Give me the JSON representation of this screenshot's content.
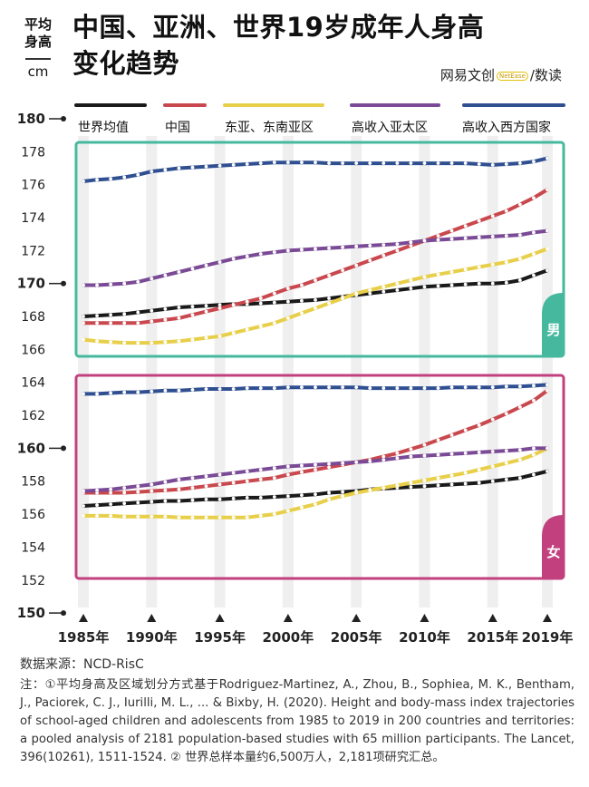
{
  "header": {
    "y_unit_line1": "平均",
    "y_unit_line2": "身高",
    "y_unit": "cm",
    "title_line1": "中国、亚洲、世界19岁成年人身高",
    "title_line2": "变化趋势",
    "brand_left": "网易",
    "brand_mid": "文创",
    "brand_logo": "NetEase",
    "brand_right": "数读"
  },
  "footer": {
    "source": "数据来源：NCD-RisC",
    "note": "注：①平均身高及区域划分方式基于Rodriguez-Martinez, A., Zhou, B., Sophiea, M. K., Bentham, J., Paciorek, C. J., Iurilli, M. L., ... & Bixby, H. (2020). Height and body-mass index trajectories of school-aged children and adolescents from 1985 to 2019 in 200 countries and territories: a pooled analysis of 2181 population-based studies with 65 million participants. The Lancet, 396(10261), 1511-1524. ② 世界总样本量约6,500万人，2,181项研究汇总。"
  },
  "chart_data": {
    "type": "line",
    "xlabel": "",
    "ylabel": "平均身高",
    "yunit": "cm",
    "ylim": [
      150,
      180
    ],
    "y_ticks": [
      150,
      152,
      154,
      156,
      158,
      160,
      162,
      164,
      166,
      168,
      170,
      172,
      174,
      176,
      178,
      180
    ],
    "y_ticks_emphasis": [
      150,
      160,
      170,
      180
    ],
    "x_ticks": [
      1985,
      1990,
      1995,
      2000,
      2005,
      2010,
      2015,
      2019
    ],
    "x_tick_labels": [
      "1985年",
      "1990年",
      "1995年",
      "2000年",
      "2005年",
      "2010年",
      "2015年",
      "2019年"
    ],
    "grid": "vertical bands",
    "legend_position": "top",
    "years": [
      1985,
      1986,
      1987,
      1988,
      1989,
      1990,
      1991,
      1992,
      1993,
      1994,
      1995,
      1996,
      1997,
      1998,
      1999,
      2000,
      2001,
      2002,
      2003,
      2004,
      2005,
      2006,
      2007,
      2008,
      2009,
      2010,
      2011,
      2012,
      2013,
      2014,
      2015,
      2016,
      2017,
      2018,
      2019
    ],
    "series_meta": [
      {
        "key": "world",
        "name": "世界均值",
        "color": "#1a1a1a"
      },
      {
        "key": "china",
        "name": "中国",
        "color": "#c9484e"
      },
      {
        "key": "east_asia",
        "name": "东亚、东南亚区",
        "color": "#e8cf4a"
      },
      {
        "key": "high_income_ap",
        "name": "高收入亚太区",
        "color": "#7a4a96"
      },
      {
        "key": "high_income_west",
        "name": "高收入西方国家",
        "color": "#2f4f91"
      }
    ],
    "panels": [
      {
        "label": "男",
        "frame_color": "#46b89e",
        "series": {
          "world": [
            168.0,
            168.05,
            168.1,
            168.15,
            168.25,
            168.35,
            168.45,
            168.55,
            168.6,
            168.65,
            168.7,
            168.75,
            168.75,
            168.8,
            168.85,
            168.9,
            168.95,
            169.0,
            169.1,
            169.2,
            169.3,
            169.4,
            169.5,
            169.6,
            169.7,
            169.8,
            169.85,
            169.9,
            169.95,
            170.0,
            170.0,
            170.05,
            170.2,
            170.5,
            170.8
          ],
          "china": [
            167.6,
            167.6,
            167.6,
            167.6,
            167.6,
            167.7,
            167.8,
            167.9,
            168.1,
            168.3,
            168.5,
            168.7,
            168.9,
            169.1,
            169.4,
            169.7,
            169.9,
            170.2,
            170.5,
            170.8,
            171.1,
            171.4,
            171.7,
            172.0,
            172.3,
            172.6,
            172.9,
            173.2,
            173.5,
            173.8,
            174.1,
            174.4,
            174.8,
            175.2,
            175.7
          ],
          "east_asia": [
            166.6,
            166.5,
            166.45,
            166.4,
            166.4,
            166.4,
            166.45,
            166.5,
            166.6,
            166.7,
            166.8,
            167.0,
            167.2,
            167.4,
            167.6,
            167.9,
            168.2,
            168.5,
            168.8,
            169.1,
            169.4,
            169.6,
            169.8,
            170.0,
            170.2,
            170.4,
            170.55,
            170.7,
            170.85,
            171.0,
            171.15,
            171.3,
            171.5,
            171.8,
            172.1
          ],
          "high_income_ap": [
            169.9,
            169.9,
            169.95,
            170.0,
            170.1,
            170.3,
            170.5,
            170.7,
            170.9,
            171.1,
            171.3,
            171.5,
            171.65,
            171.8,
            171.9,
            172.0,
            172.05,
            172.1,
            172.15,
            172.2,
            172.25,
            172.3,
            172.35,
            172.4,
            172.5,
            172.6,
            172.65,
            172.7,
            172.75,
            172.8,
            172.85,
            172.9,
            172.95,
            173.1,
            173.2
          ],
          "high_income_west": [
            176.2,
            176.3,
            176.35,
            176.45,
            176.6,
            176.8,
            176.9,
            177.0,
            177.05,
            177.1,
            177.15,
            177.2,
            177.25,
            177.3,
            177.35,
            177.35,
            177.35,
            177.35,
            177.3,
            177.3,
            177.3,
            177.3,
            177.3,
            177.3,
            177.3,
            177.3,
            177.3,
            177.3,
            177.3,
            177.25,
            177.2,
            177.25,
            177.3,
            177.4,
            177.6
          ]
        }
      },
      {
        "label": "女",
        "frame_color": "#c2407e",
        "series": {
          "world": [
            156.5,
            156.55,
            156.6,
            156.65,
            156.7,
            156.75,
            156.8,
            156.8,
            156.85,
            156.9,
            156.9,
            156.95,
            157.0,
            157.0,
            157.05,
            157.1,
            157.15,
            157.2,
            157.3,
            157.35,
            157.4,
            157.5,
            157.55,
            157.6,
            157.65,
            157.7,
            157.75,
            157.8,
            157.85,
            157.9,
            158.0,
            158.1,
            158.2,
            158.4,
            158.6
          ],
          "china": [
            157.3,
            157.3,
            157.3,
            157.3,
            157.35,
            157.4,
            157.45,
            157.5,
            157.6,
            157.7,
            157.8,
            157.9,
            158.0,
            158.1,
            158.2,
            158.4,
            158.55,
            158.7,
            158.85,
            159.0,
            159.15,
            159.3,
            159.5,
            159.7,
            159.95,
            160.2,
            160.5,
            160.8,
            161.1,
            161.4,
            161.75,
            162.1,
            162.5,
            162.9,
            163.5
          ],
          "east_asia": [
            155.9,
            155.9,
            155.9,
            155.85,
            155.85,
            155.85,
            155.85,
            155.8,
            155.8,
            155.8,
            155.8,
            155.8,
            155.8,
            155.9,
            156.0,
            156.2,
            156.4,
            156.6,
            156.9,
            157.1,
            157.3,
            157.45,
            157.6,
            157.75,
            157.9,
            158.05,
            158.2,
            158.35,
            158.5,
            158.7,
            158.9,
            159.1,
            159.3,
            159.6,
            160.0
          ],
          "high_income_ap": [
            157.4,
            157.45,
            157.5,
            157.6,
            157.7,
            157.8,
            157.95,
            158.1,
            158.2,
            158.3,
            158.4,
            158.5,
            158.6,
            158.7,
            158.8,
            158.9,
            158.95,
            159.0,
            159.05,
            159.1,
            159.15,
            159.2,
            159.3,
            159.4,
            159.5,
            159.55,
            159.6,
            159.65,
            159.7,
            159.75,
            159.8,
            159.85,
            159.9,
            160.0,
            160.0
          ],
          "high_income_west": [
            163.3,
            163.3,
            163.35,
            163.4,
            163.4,
            163.45,
            163.5,
            163.5,
            163.55,
            163.6,
            163.6,
            163.6,
            163.65,
            163.65,
            163.65,
            163.7,
            163.7,
            163.7,
            163.7,
            163.7,
            163.7,
            163.65,
            163.65,
            163.65,
            163.65,
            163.65,
            163.65,
            163.7,
            163.7,
            163.7,
            163.7,
            163.75,
            163.75,
            163.8,
            163.85
          ]
        }
      }
    ]
  }
}
